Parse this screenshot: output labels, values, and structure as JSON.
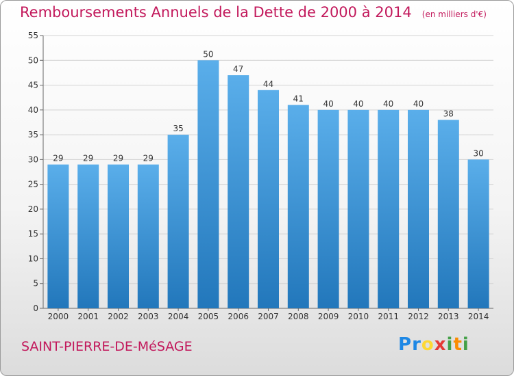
{
  "title": "Remboursements Annuels de la Dette de 2000 à 2014",
  "subtitle": "(en milliers d'€)",
  "commune": "SAINT-PIERRE-DE-MéSAGE",
  "logo": {
    "letters": [
      "P",
      "r",
      "o",
      "x",
      "i",
      "t",
      "i"
    ],
    "colors": [
      "#1e88e5",
      "#1e88e5",
      "#fdd835",
      "#e53935",
      "#43a047",
      "#fb8c00",
      "#43a047"
    ]
  },
  "colors": {
    "bar_light": "#5aaeea",
    "bar_dark": "#2277bb",
    "title": "#c2185b"
  },
  "chart_data": {
    "type": "bar",
    "categories": [
      "2000",
      "2001",
      "2002",
      "2003",
      "2004",
      "2005",
      "2006",
      "2007",
      "2008",
      "2009",
      "2010",
      "2011",
      "2012",
      "2013",
      "2014"
    ],
    "values": [
      29,
      29,
      29,
      29,
      35,
      50,
      47,
      44,
      41,
      40,
      40,
      40,
      40,
      38,
      30
    ],
    "yticks": [
      "0",
      "5",
      "10",
      "15",
      "20",
      "25",
      "30",
      "35",
      "40",
      "45",
      "50",
      "55"
    ],
    "ylim": [
      0,
      55
    ],
    "grid": true
  }
}
